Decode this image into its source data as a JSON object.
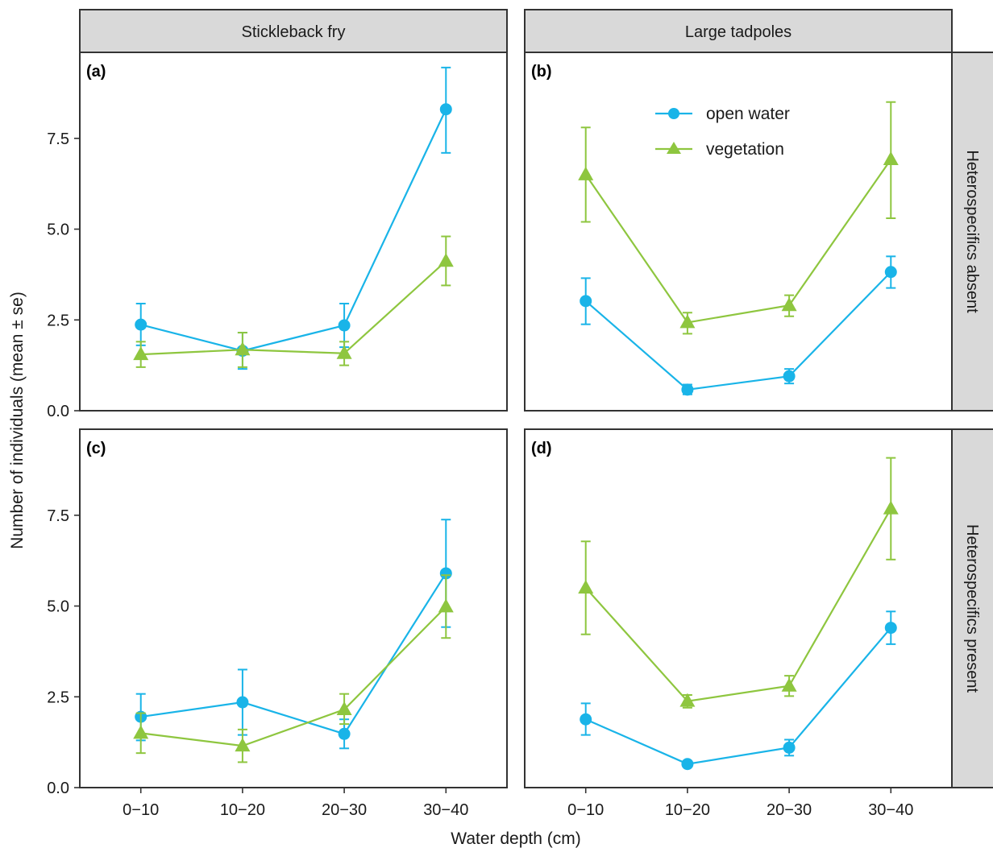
{
  "colors": {
    "open_water": "#19b4e8",
    "vegetation": "#8ec63f",
    "strip_fill": "#d9d9d9",
    "panel_border": "#333333"
  },
  "chart_data": {
    "type": "line",
    "xlabel": "Water depth (cm)",
    "ylabel": "Number of individuals (mean ± se)",
    "categories": [
      "0−10",
      "10−20",
      "20−30",
      "30−40"
    ],
    "ylim": [
      0,
      9.75
    ],
    "yticks": [
      "0.0",
      "2.5",
      "5.0",
      "7.5"
    ],
    "grid": false,
    "legend": {
      "placement": "inside panel (b), top",
      "entries": [
        "open water",
        "vegetation"
      ]
    },
    "columns": [
      "Stickleback fry",
      "Large tadpoles"
    ],
    "rows": [
      "Heterospecifics absent",
      "Heterospecifics present"
    ],
    "panels": [
      {
        "label": "(a)",
        "column": "Stickleback fry",
        "row": "Heterospecifics absent",
        "series": [
          {
            "name": "open water",
            "marker": "circle",
            "values": [
              2.37,
              1.65,
              2.35,
              8.3
            ],
            "se_low": [
              1.8,
              1.15,
              1.75,
              7.1
            ],
            "se_high": [
              2.95,
              2.15,
              2.95,
              9.45
            ]
          },
          {
            "name": "vegetation",
            "marker": "triangle",
            "values": [
              1.55,
              1.68,
              1.58,
              4.12
            ],
            "se_low": [
              1.2,
              1.2,
              1.25,
              3.45
            ],
            "se_high": [
              1.9,
              2.15,
              1.9,
              4.8
            ]
          }
        ]
      },
      {
        "label": "(b)",
        "column": "Large tadpoles",
        "row": "Heterospecifics absent",
        "series": [
          {
            "name": "open water",
            "marker": "circle",
            "values": [
              3.02,
              0.58,
              0.95,
              3.82
            ],
            "se_low": [
              2.38,
              0.45,
              0.75,
              3.38
            ],
            "se_high": [
              3.65,
              0.72,
              1.15,
              4.25
            ]
          },
          {
            "name": "vegetation",
            "marker": "triangle",
            "values": [
              6.5,
              2.43,
              2.9,
              6.92
            ],
            "se_low": [
              5.2,
              2.12,
              2.6,
              5.3
            ],
            "se_high": [
              7.8,
              2.7,
              3.18,
              8.5
            ]
          }
        ]
      },
      {
        "label": "(c)",
        "column": "Stickleback fry",
        "row": "Heterospecifics present",
        "series": [
          {
            "name": "open water",
            "marker": "circle",
            "values": [
              1.95,
              2.35,
              1.48,
              5.9
            ],
            "se_low": [
              1.3,
              1.45,
              1.08,
              4.42
            ],
            "se_high": [
              2.58,
              3.25,
              1.88,
              7.38
            ]
          },
          {
            "name": "vegetation",
            "marker": "triangle",
            "values": [
              1.5,
              1.15,
              2.15,
              4.98
            ],
            "se_low": [
              0.95,
              0.7,
              1.75,
              4.12
            ],
            "se_high": [
              2.05,
              1.6,
              2.58,
              5.85
            ]
          }
        ]
      },
      {
        "label": "(d)",
        "column": "Large tadpoles",
        "row": "Heterospecifics present",
        "series": [
          {
            "name": "open water",
            "marker": "circle",
            "values": [
              1.88,
              0.65,
              1.1,
              4.4
            ],
            "se_low": [
              1.45,
              0.58,
              0.88,
              3.95
            ],
            "se_high": [
              2.32,
              0.72,
              1.32,
              4.85
            ]
          },
          {
            "name": "vegetation",
            "marker": "triangle",
            "values": [
              5.5,
              2.38,
              2.8,
              7.68
            ],
            "se_low": [
              4.22,
              2.2,
              2.52,
              6.28
            ],
            "se_high": [
              6.78,
              2.55,
              3.08,
              9.08
            ]
          }
        ]
      }
    ]
  }
}
